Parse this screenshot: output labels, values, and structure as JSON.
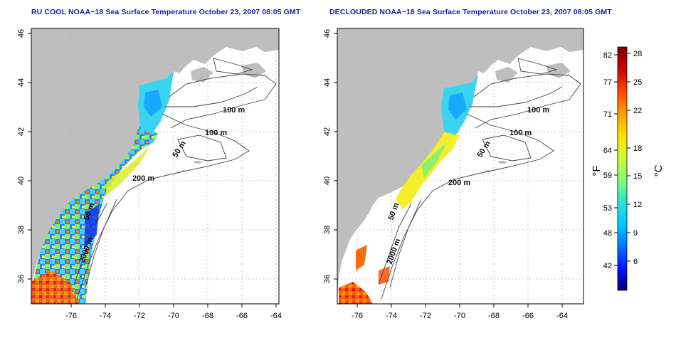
{
  "left_panel": {
    "title": "RU COOL NOAA−18 Sea Surface Temperature October 23, 2007 08:05 GMT",
    "contour_labels": [
      "100 m",
      "100 m",
      "50 m",
      "200 m",
      "50 m",
      "2000 m"
    ]
  },
  "right_panel": {
    "title": "DECLOUDED NOAA−18 Sea Surface Temperature October 23, 2007 08:05 GMT",
    "contour_labels": [
      "100 m",
      "100 m",
      "50 m",
      "200 m",
      "50 m",
      "2000 m"
    ]
  },
  "axes": {
    "lon_ticks": [
      "-76",
      "-74",
      "-72",
      "-70",
      "-68",
      "-66",
      "-64"
    ],
    "lat_ticks": [
      "36",
      "38",
      "40",
      "42",
      "44",
      "46"
    ]
  },
  "colorbar": {
    "fahrenheit_unit": "°F",
    "celsius_unit": "°C",
    "fahrenheit_ticks": [
      "82",
      "77",
      "71",
      "64",
      "59",
      "53",
      "48",
      "42"
    ],
    "celsius_ticks": [
      "28",
      "25",
      "22",
      "18",
      "15",
      "12",
      "9",
      "6"
    ],
    "colors": [
      "#00007a",
      "#0015ff",
      "#0072ff",
      "#00c8ff",
      "#29e3d6",
      "#7dfc7f",
      "#d1fc2e",
      "#ffe000",
      "#ff9b00",
      "#ff4400",
      "#cc0000",
      "#800000"
    ]
  }
}
